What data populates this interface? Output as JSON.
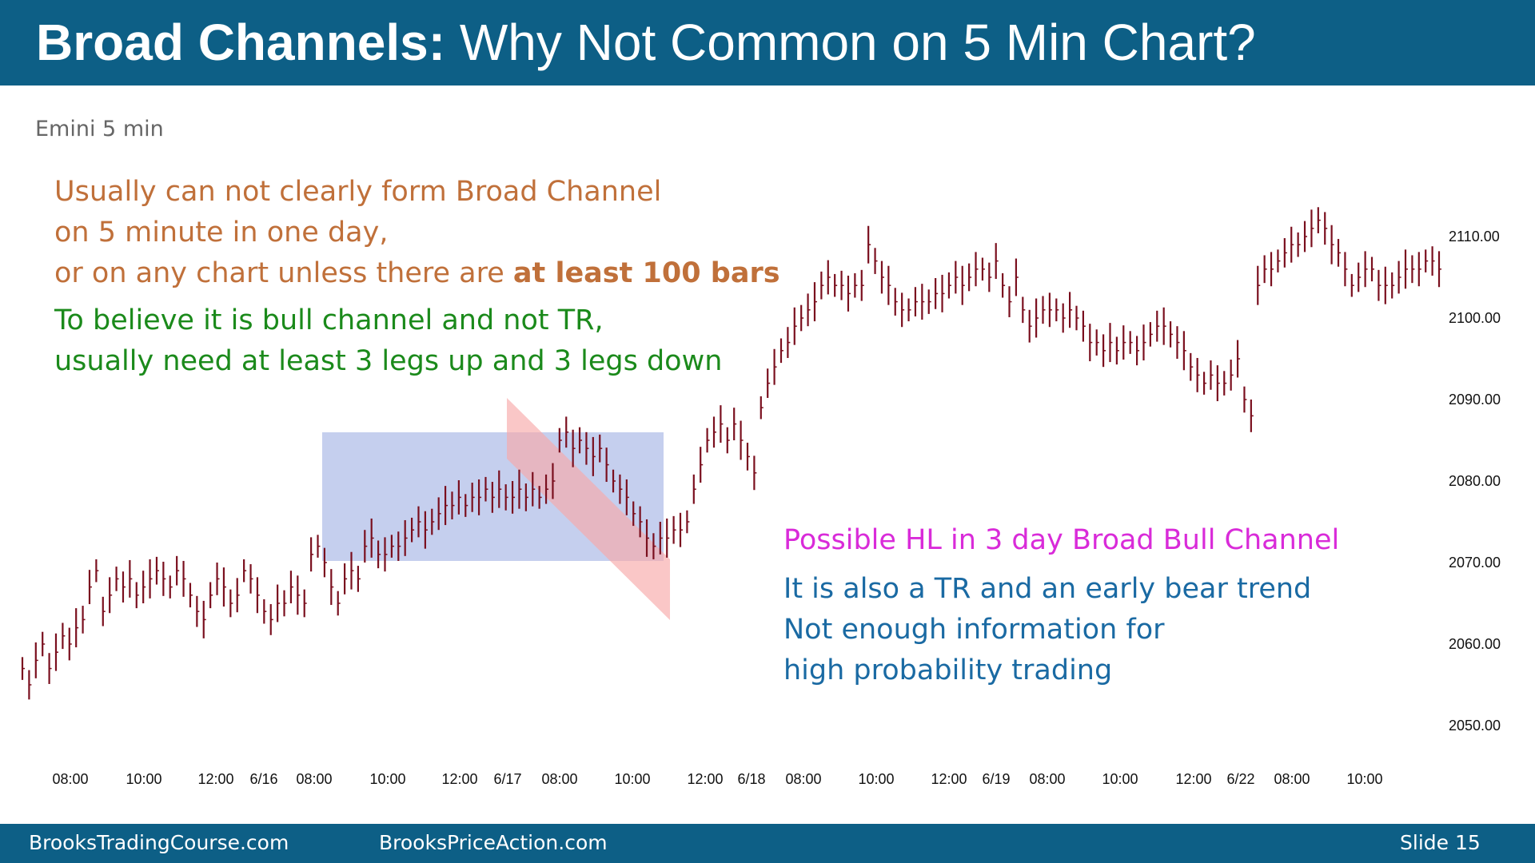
{
  "header": {
    "title_bold": "Broad Channels:",
    "title_rest": " Why Not Common on 5 Min Chart?"
  },
  "subtitle": "Emini 5 min",
  "notes": {
    "orange_lines": [
      "Usually can not clearly form Broad Channel",
      "on 5 minute in one day,"
    ],
    "orange_line3_prefix": "or on any chart unless there are ",
    "orange_line3_bold": "at least 100 bars",
    "green_lines": [
      "To believe it is bull channel and not TR,",
      "usually need at least 3 legs up and 3 legs down"
    ],
    "magenta_line": "Possible HL in 3 day Broad Bull Channel",
    "blue_lines": [
      "It is also a TR and an early bear trend",
      "Not enough information for",
      "high probability trading"
    ]
  },
  "footer": {
    "left": "BrooksTradingCourse.com",
    "center": "BrooksPriceAction.com",
    "right": "Slide  15"
  },
  "colors": {
    "header_bg": "#0d5f86",
    "bar": "#7a0f1e",
    "range_box": "#aebde8",
    "bear_channel": "#f7a9a9"
  },
  "chart_data": {
    "type": "line",
    "series": [
      {
        "values": [
          2057,
          2055,
          2058,
          2060,
          2057,
          2059,
          2061,
          2060,
          2062,
          2063,
          2067,
          2069,
          2064,
          2066,
          2068,
          2067,
          2068,
          2066,
          2067,
          2068,
          2069,
          2068,
          2067,
          2069,
          2068,
          2066,
          2064,
          2063,
          2066,
          2068,
          2067,
          2065,
          2066,
          2069,
          2068,
          2066,
          2064,
          2063,
          2065,
          2065,
          2067,
          2066,
          2065,
          2071,
          2072,
          2070,
          2067,
          2065,
          2068,
          2069,
          2068,
          2072,
          2073,
          2071,
          2071,
          2072,
          2072,
          2073,
          2074,
          2075,
          2074,
          2075,
          2076,
          2077,
          2077,
          2078,
          2077,
          2078,
          2078,
          2079,
          2078,
          2079,
          2078,
          2078,
          2079,
          2078,
          2079,
          2078,
          2079,
          2080,
          2085,
          2086,
          2084,
          2085,
          2084,
          2083,
          2084,
          2082,
          2080,
          2079,
          2078,
          2076,
          2075,
          2073,
          2072,
          2073,
          2073,
          2074,
          2074,
          2075,
          2079,
          2082,
          2085,
          2086,
          2087,
          2085,
          2087,
          2085,
          2083,
          2081,
          2089,
          2092,
          2094,
          2096,
          2097,
          2099,
          2100,
          2101,
          2102,
          2104,
          2105,
          2104,
          2104,
          2103,
          2104,
          2104,
          2109,
          2107,
          2105,
          2104,
          2102,
          2101,
          2101,
          2102,
          2102,
          2102,
          2103,
          2103,
          2104,
          2105,
          2104,
          2105,
          2106,
          2106,
          2105,
          2107,
          2104,
          2102,
          2105,
          2101,
          2099,
          2100,
          2101,
          2101,
          2101,
          2100,
          2101,
          2100,
          2099,
          2097,
          2097,
          2096,
          2097,
          2096,
          2097,
          2097,
          2096,
          2097,
          2098,
          2099,
          2099,
          2098,
          2097,
          2096,
          2094,
          2093,
          2092,
          2093,
          2092,
          2092,
          2093,
          2095,
          2090,
          2088,
          2104,
          2106,
          2106,
          2107,
          2108,
          2109,
          2109,
          2110,
          2111,
          2112,
          2111,
          2109,
          2108,
          2106,
          2104,
          2105,
          2106,
          2106,
          2104,
          2104,
          2104,
          2105,
          2106,
          2106,
          2106,
          2107,
          2107,
          2106
        ]
      }
    ],
    "x_tick_labels": [
      "08:00",
      "10:00",
      "12:00",
      "6/16",
      "08:00",
      "10:00",
      "12:00",
      "6/17",
      "08:00",
      "10:00",
      "12:00",
      "6/18",
      "08:00",
      "10:00",
      "12:00",
      "6/19",
      "08:00",
      "10:00",
      "12:00",
      "6/22",
      "08:00",
      "10:00"
    ],
    "y_tick_labels": [
      "2110.00",
      "2100.00",
      "2090.00",
      "2080.00",
      "2070.00",
      "2060.00",
      "2050.00"
    ],
    "ylim": [
      2045,
      2116
    ],
    "grid": false,
    "legend": "none"
  }
}
